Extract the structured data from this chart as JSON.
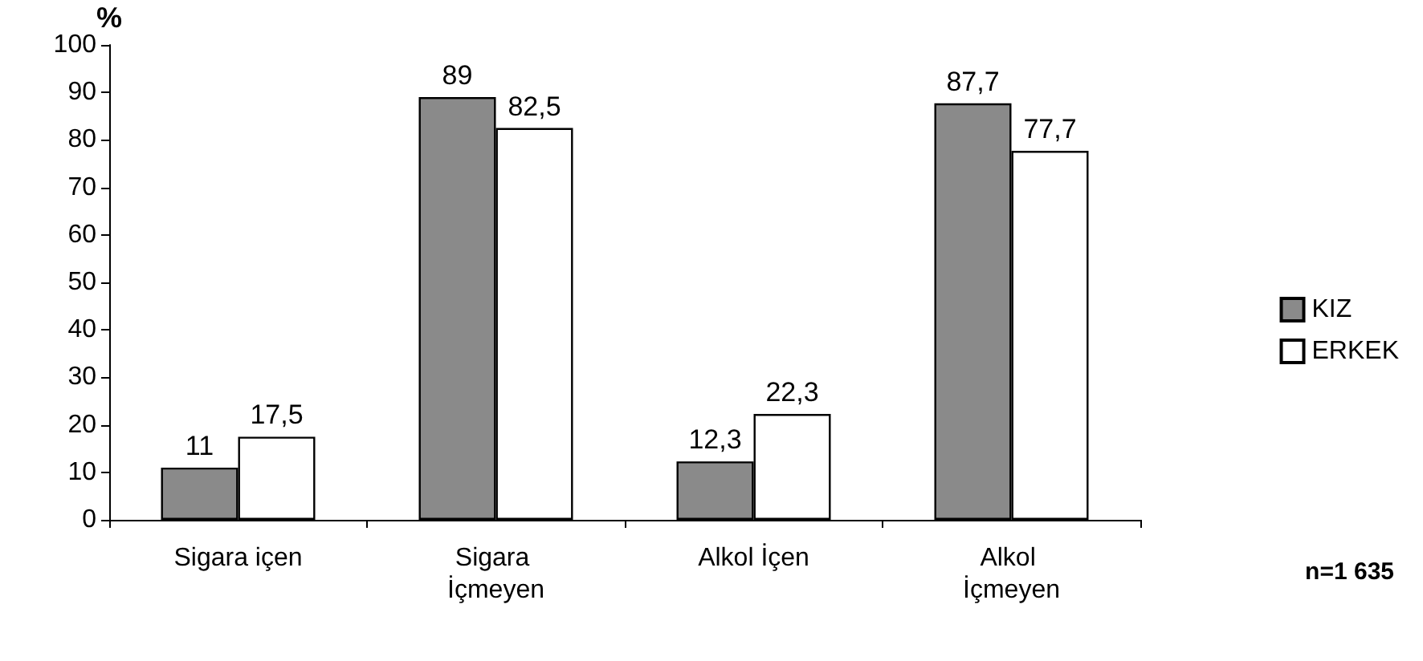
{
  "chart_data": {
    "type": "bar",
    "ylabel": "%",
    "categories": [
      "Sigara içen",
      "Sigara İçmeyen",
      "Alkol İçen",
      "Alkol İçmeyen"
    ],
    "series": [
      {
        "name": "KIZ",
        "color": "#8a8a8a",
        "values": [
          11,
          89,
          12.3,
          87.7
        ],
        "value_labels": [
          "11",
          "89",
          "12,3",
          "87,7"
        ]
      },
      {
        "name": "ERKEK",
        "color": "#ffffff",
        "values": [
          17.5,
          82.5,
          22.3,
          77.7
        ],
        "value_labels": [
          "17,5",
          "82,5",
          "22,3",
          "77,7"
        ]
      }
    ],
    "ylim": [
      0,
      100
    ],
    "yticks": [
      0,
      10,
      20,
      30,
      40,
      50,
      60,
      70,
      80,
      90,
      100
    ],
    "grid": false,
    "legend": "right",
    "annotations": [
      "n=1 635"
    ]
  }
}
